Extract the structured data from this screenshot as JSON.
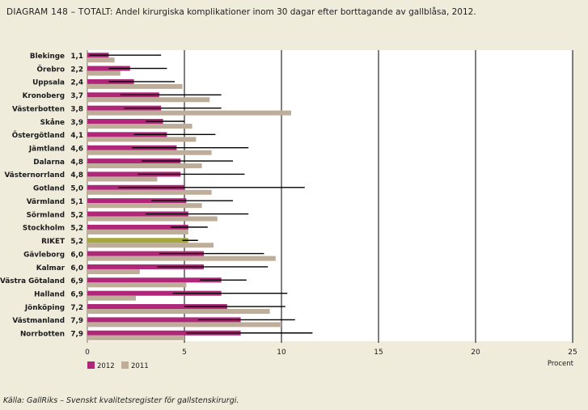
{
  "title": {
    "prefix": "DIAGRAM 148 – TOTALT:",
    "text": "Andel kirurgiska komplikationer inom 30 dagar efter borttagande av gallblåsa, 2012."
  },
  "source": "Källa: GallRiks – Svenskt kvalitetsregister för gallstenskirurgi.",
  "colors": {
    "series_2012": "#b0277a",
    "series_2011": "#bdad99",
    "riket_2012": "#a5a83a",
    "ci_line": "#000000",
    "grid": "#000000",
    "plot_bg": "#ffffff",
    "frame_bg": "#efecdc"
  },
  "chart_data": {
    "type": "bar",
    "orientation": "horizontal",
    "xlabel": "Procent",
    "xlim": [
      0,
      25
    ],
    "xticks": [
      0,
      5,
      10,
      15,
      20,
      25
    ],
    "grid": true,
    "legend_position": "bottom-left",
    "categories": [
      "Blekinge",
      "Örebro",
      "Uppsala",
      "Kronoberg",
      "Västerbotten",
      "Skåne",
      "Östergötland",
      "Jämtland",
      "Dalarna",
      "Västernorrland",
      "Gotland",
      "Värmland",
      "Sörmland",
      "Stockholm",
      "RIKET",
      "Gävleborg",
      "Kalmar",
      "Västra Götaland",
      "Halland",
      "Jönköping",
      "Västmanland",
      "Norrbotten"
    ],
    "value_labels": [
      "1,1",
      "2,2",
      "2,4",
      "3,7",
      "3,8",
      "3,9",
      "4,1",
      "4,6",
      "4,8",
      "4,8",
      "5,0",
      "5,1",
      "5,2",
      "5,2",
      "5,2",
      "6,0",
      "6,0",
      "6,9",
      "6,9",
      "7,2",
      "7,9",
      "7,9"
    ],
    "series": [
      {
        "name": "2012",
        "values": [
          1.1,
          2.2,
          2.4,
          3.7,
          3.8,
          3.9,
          4.1,
          4.6,
          4.8,
          4.8,
          5.0,
          5.1,
          5.2,
          5.2,
          5.2,
          6.0,
          6.0,
          6.9,
          6.9,
          7.2,
          7.9,
          7.9
        ],
        "ci_low": [
          0.1,
          1.1,
          1.1,
          1.7,
          1.9,
          3.0,
          2.4,
          2.3,
          2.8,
          2.6,
          1.6,
          3.3,
          3.0,
          4.3,
          4.9,
          3.7,
          3.6,
          5.8,
          4.4,
          5.0,
          5.7,
          5.1
        ],
        "ci_high": [
          3.8,
          4.1,
          4.5,
          6.9,
          6.9,
          5.0,
          6.6,
          8.3,
          7.5,
          8.1,
          11.2,
          7.5,
          8.3,
          6.2,
          5.7,
          9.1,
          9.3,
          8.2,
          10.3,
          10.2,
          10.7,
          11.6
        ]
      },
      {
        "name": "2011",
        "values": [
          1.4,
          1.7,
          4.9,
          6.3,
          10.5,
          5.4,
          5.6,
          6.4,
          5.9,
          3.6,
          6.4,
          5.9,
          6.7,
          5.2,
          6.5,
          9.7,
          2.7,
          5.1,
          2.5,
          9.4,
          10.0,
          5.0
        ]
      }
    ]
  }
}
